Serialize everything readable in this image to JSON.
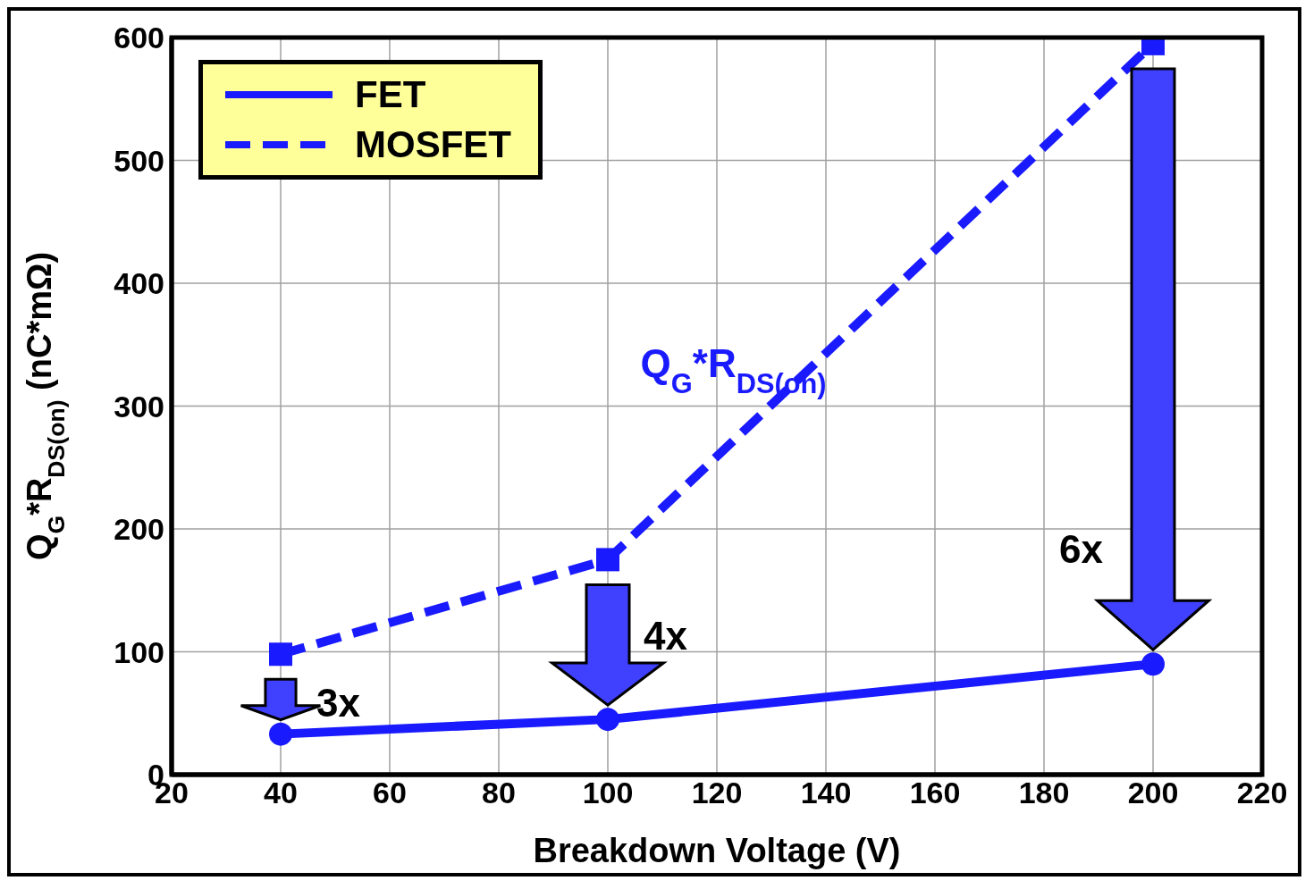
{
  "chart_data": {
    "type": "line",
    "xlabel": "Breakdown Voltage (V)",
    "ylabel": "Q$_{G}$*R$_{DS(on)}$ (nC*mΩ)",
    "x": [
      40,
      100,
      200
    ],
    "series": [
      {
        "name": "FET",
        "color": "#1a1aff",
        "values": [
          33,
          45,
          90
        ],
        "marker": "circle",
        "line_style": "solid"
      },
      {
        "name": "MOSFET",
        "color": "#1a1aff",
        "values": [
          98,
          175,
          595
        ],
        "marker": "square",
        "line_style": "dashed"
      }
    ],
    "xlim": [
      20,
      220
    ],
    "xticks": [
      20,
      40,
      60,
      80,
      100,
      120,
      140,
      160,
      180,
      200,
      220
    ],
    "ylim": [
      0,
      600
    ],
    "yticks": [
      0,
      100,
      200,
      300,
      400,
      500,
      600
    ],
    "grid": true,
    "legend": "top left",
    "annotations": [
      "Q$_{G}$*R$_{DS(on)}$",
      "3x",
      "4x",
      "6x"
    ]
  }
}
